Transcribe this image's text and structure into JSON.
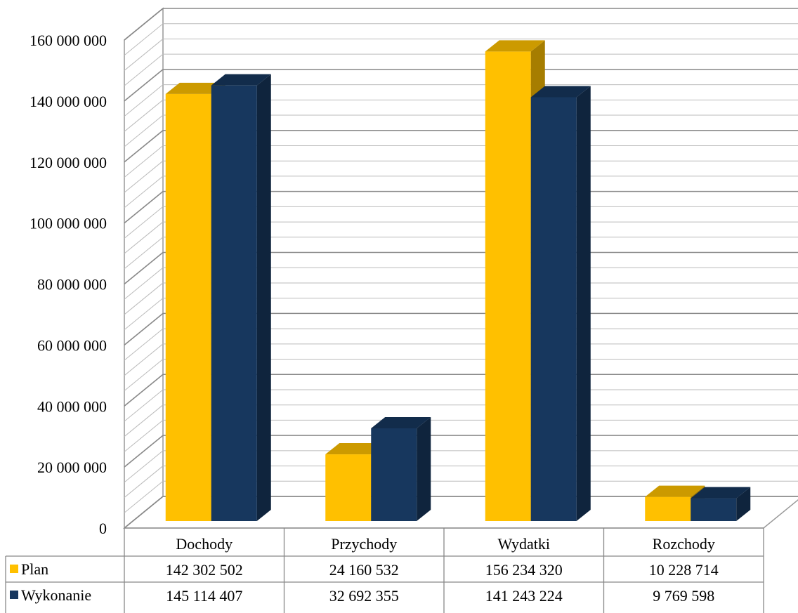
{
  "chart_data": {
    "type": "bar",
    "title": "",
    "xlabel": "",
    "ylabel": "",
    "categories": [
      "Dochody",
      "Przychody",
      "Wydatki",
      "Rozchody"
    ],
    "series": [
      {
        "name": "Plan",
        "color": "#FFC000",
        "values": [
          142302502,
          24160532,
          156234320,
          10228714
        ]
      },
      {
        "name": "Wykonanie",
        "color": "#17375E",
        "values": [
          145114407,
          32692355,
          141243224,
          9769598
        ]
      }
    ],
    "data_table": [
      [
        "142 302 502",
        "24 160 532",
        "156 234 320",
        "10 228 714"
      ],
      [
        "145 114 407",
        "32 692 355",
        "141 243 224",
        "9 769 598"
      ]
    ],
    "ylim": [
      0,
      160000000
    ],
    "yticks": [
      0,
      20000000,
      40000000,
      60000000,
      80000000,
      100000000,
      120000000,
      140000000,
      160000000
    ],
    "ytick_labels": [
      "0",
      "20 000 000",
      "40 000 000",
      "60 000 000",
      "80 000 000",
      "100 000 000",
      "120 000 000",
      "140 000 000",
      "160 000 000"
    ],
    "grid": true,
    "style": "3d-clustered-column-with-data-table"
  }
}
